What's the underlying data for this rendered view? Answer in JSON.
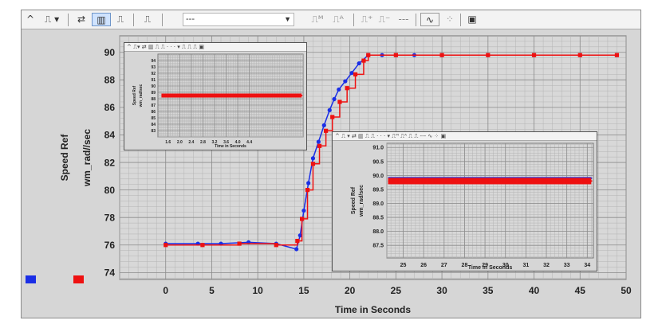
{
  "toolbar": {
    "items": [
      {
        "name": "zoom-up-icon",
        "glyph": "^"
      },
      {
        "name": "signal-select-icon",
        "glyph": "⎍ ▾"
      },
      {
        "name": "refresh-icon",
        "glyph": "⇄"
      },
      {
        "name": "bar-view-icon",
        "glyph": "▥"
      },
      {
        "name": "step-view-icon",
        "glyph": "⎍"
      },
      {
        "name": "trigger-icon",
        "glyph": "⎍"
      }
    ],
    "combo_value": "---",
    "right_items": [
      {
        "name": "measure-max-icon",
        "glyph": "⎍ᴹ"
      },
      {
        "name": "measure-amplitude-icon",
        "glyph": "⎍ᴬ"
      },
      {
        "name": "cursor-add-icon",
        "glyph": "⎍⁺"
      },
      {
        "name": "cursor-remove-icon",
        "glyph": "⎍⁻"
      },
      {
        "name": "dash-option-icon",
        "glyph": "---"
      },
      {
        "name": "wave-icon",
        "glyph": "∿"
      },
      {
        "name": "scatter-icon",
        "glyph": "⁘"
      },
      {
        "name": "properties-icon",
        "glyph": "▣"
      }
    ]
  },
  "colors": {
    "series_blue": "#1a2ee6",
    "series_red": "#ee1111",
    "grid_major": "#8c8c8c",
    "grid_minor": "#b4b4b4"
  },
  "chart_data": [
    {
      "type": "line",
      "xlabel": "Time in Seconds",
      "ylabel": "Speed Ref",
      "ylabel2": "wm_rad//sec",
      "xlim": [
        -5,
        50
      ],
      "ylim": [
        73.5,
        91.2
      ],
      "xticks": [
        "0",
        "5",
        "10",
        "15",
        "20",
        "25",
        "30",
        "35",
        "40",
        "45",
        "50"
      ],
      "yticks": [
        "74",
        "76",
        "78",
        "80",
        "82",
        "84",
        "86",
        "88",
        "90"
      ],
      "series": [
        {
          "color": "blue",
          "x": [
            0,
            3.5,
            6,
            9,
            12,
            14.2,
            14.6,
            15.0,
            15.5,
            16.0,
            16.6,
            17.2,
            17.8,
            18.3,
            18.8,
            19.5,
            20.2,
            21,
            22,
            23.5,
            25,
            27,
            30,
            35,
            40,
            45,
            49
          ],
          "y": [
            76.1,
            76.1,
            76.1,
            76.2,
            76.1,
            75.7,
            76.7,
            78.5,
            80.5,
            82.3,
            83.5,
            84.7,
            85.8,
            86.6,
            87.3,
            87.9,
            88.5,
            89.2,
            89.8,
            89.8,
            89.8,
            89.8,
            89.8,
            89.8,
            89.8,
            89.8,
            89.8
          ]
        },
        {
          "color": "red",
          "x": [
            0,
            4,
            8,
            12,
            14.3,
            14.8,
            15.4,
            16.0,
            16.7,
            17.4,
            18.1,
            18.9,
            19.7,
            20.6,
            21.5,
            22,
            25,
            30,
            35,
            40,
            45,
            49
          ],
          "y": [
            76.0,
            76.0,
            76.1,
            76.0,
            76.3,
            77.9,
            80.0,
            81.9,
            83.2,
            84.3,
            85.3,
            86.4,
            87.4,
            88.4,
            89.4,
            89.8,
            89.8,
            89.8,
            89.8,
            89.8,
            89.8,
            89.8
          ]
        }
      ]
    },
    {
      "type": "line",
      "ylabel": "Speed Ref",
      "ylabel2": "wm_rad/sec",
      "xlabel": "Time in Seconds",
      "xlim": [
        1.25,
        6.25
      ],
      "ylim": [
        82,
        95
      ],
      "xticks": [
        "1.6",
        "2.0",
        "2.4",
        "2.8",
        "3.2",
        "3.6",
        "4.0",
        "4.4"
      ],
      "yticks": [
        "83",
        "84",
        "85",
        "86",
        "87",
        "88",
        "89",
        "90",
        "91",
        "92",
        "93",
        "94"
      ],
      "series": [
        {
          "color": "red",
          "x": [
            1.4,
            6.2
          ],
          "y": [
            88.5,
            88.5
          ]
        }
      ]
    },
    {
      "type": "line",
      "ylabel": "Speed Ref",
      "ylabel2": "wm_rad/sec",
      "xlabel": "Time in Seconds",
      "xlim": [
        24.2,
        34.3
      ],
      "ylim": [
        87.05,
        91.15
      ],
      "xticks": [
        "25",
        "26",
        "27",
        "28",
        "29",
        "30",
        "31",
        "32",
        "33",
        "34"
      ],
      "yticks": [
        "87.5",
        "88.0",
        "88.5",
        "89.0",
        "89.5",
        "90.0",
        "90.5",
        "91.0"
      ],
      "series": [
        {
          "color": "blue",
          "x": [
            24.3,
            34.2
          ],
          "y": [
            89.9,
            89.9
          ]
        },
        {
          "color": "red",
          "x": [
            24.3,
            34.2
          ],
          "y": [
            89.8,
            89.8
          ]
        }
      ]
    }
  ]
}
